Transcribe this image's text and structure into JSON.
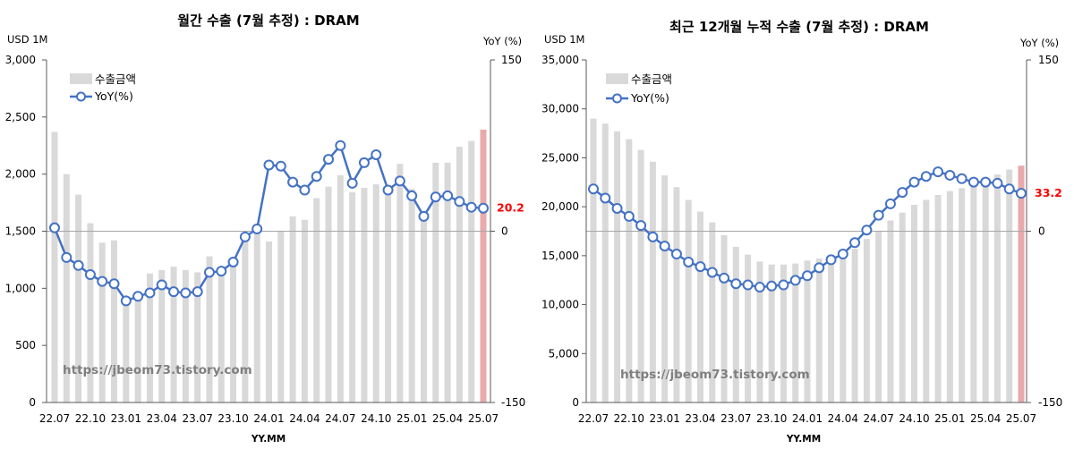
{
  "chart_data": [
    {
      "type": "bar",
      "title": "월간 수출 (7월 추정) : DRAM",
      "xlabel": "YY.MM",
      "ylabel": "USD 1M",
      "y2label": "YoY (%)",
      "ylim": [
        0,
        3000
      ],
      "y2lim": [
        -150,
        150
      ],
      "yticks": [
        0,
        500,
        1000,
        1500,
        2000,
        2500,
        3000
      ],
      "ytick_labels": [
        "0",
        "500",
        "1,000",
        "1,500",
        "2,000",
        "2,500",
        "3,000"
      ],
      "y2ticks": [
        -150,
        0,
        150
      ],
      "y2tick_labels": [
        "-150",
        "0",
        "150"
      ],
      "grid": false,
      "legend": "top-left",
      "axis_color": "#595959",
      "reference_line": {
        "y2": 0,
        "color": "#a6a6a6"
      },
      "categories": [
        "22.07",
        "",
        "",
        "22.10",
        "",
        "",
        "23.01",
        "",
        "",
        "23.04",
        "",
        "",
        "23.07",
        "",
        "",
        "23.10",
        "",
        "",
        "24.01",
        "",
        "",
        "24.04",
        "",
        "",
        "24.07",
        "",
        "",
        "24.10",
        "",
        "",
        "25.01",
        "",
        "",
        "25.04",
        "",
        "",
        "25.07"
      ],
      "series": [
        {
          "name": "수출금액",
          "type": "bar",
          "axis": "left",
          "color": "#d9d9d9",
          "last_color": "#e8aaaa",
          "values": [
            2370,
            2000,
            1820,
            1570,
            1400,
            1420,
            870,
            920,
            1130,
            1160,
            1190,
            1160,
            1140,
            1280,
            1180,
            1230,
            1470,
            1510,
            1410,
            1500,
            1630,
            1600,
            1790,
            1890,
            1990,
            1840,
            1880,
            1910,
            1830,
            2090,
            1870,
            1620,
            2100,
            2100,
            2240,
            2290,
            2390
          ]
        },
        {
          "name": "YoY(%)",
          "type": "line",
          "axis": "right",
          "color": "#4472c4",
          "values": [
            3,
            -23,
            -30,
            -38,
            -44,
            -46,
            -61,
            -57,
            -54,
            -47,
            -53,
            -54,
            -53,
            -36,
            -35,
            -27,
            -5,
            2,
            58,
            57,
            43,
            36,
            48,
            63,
            75,
            42,
            60,
            67,
            36,
            44,
            31,
            13,
            30,
            31,
            26,
            21,
            20.2
          ]
        }
      ],
      "last_value_label": {
        "text": "20.2",
        "color": "#ff0000"
      },
      "watermark": "https://jbeom73.tistory.com"
    },
    {
      "type": "bar",
      "title": "최근 12개월 누적 수출 (7월 추정) : DRAM",
      "xlabel": "YY.MM",
      "ylabel": "USD 1M",
      "y2label": "YoY (%)",
      "ylim": [
        0,
        35000
      ],
      "y2lim": [
        -150,
        150
      ],
      "yticks": [
        0,
        5000,
        10000,
        15000,
        20000,
        25000,
        30000,
        35000
      ],
      "ytick_labels": [
        "0",
        "5,000",
        "10,000",
        "15,000",
        "20,000",
        "25,000",
        "30,000",
        "35,000"
      ],
      "y2ticks": [
        -150,
        0,
        150
      ],
      "y2tick_labels": [
        "-150",
        "0",
        "150"
      ],
      "grid": false,
      "legend": "top-left",
      "axis_color": "#595959",
      "reference_line": {
        "y2": 0,
        "color": "#a6a6a6"
      },
      "categories": [
        "22.07",
        "",
        "",
        "22.10",
        "",
        "",
        "23.01",
        "",
        "",
        "23.04",
        "",
        "",
        "23.07",
        "",
        "",
        "23.10",
        "",
        "",
        "24.01",
        "",
        "",
        "24.04",
        "",
        "",
        "24.07",
        "",
        "",
        "24.10",
        "",
        "",
        "25.01",
        "",
        "",
        "25.04",
        "",
        "",
        "25.07"
      ],
      "series": [
        {
          "name": "수출금액",
          "type": "bar",
          "axis": "left",
          "color": "#d9d9d9",
          "last_color": "#e8aaaa",
          "values": [
            29000,
            28500,
            27700,
            26900,
            25800,
            24600,
            23200,
            22000,
            20700,
            19500,
            18400,
            17100,
            15900,
            15100,
            14400,
            14100,
            14100,
            14200,
            14500,
            14700,
            15100,
            15400,
            15700,
            16700,
            17500,
            18600,
            19400,
            20200,
            20700,
            21200,
            21600,
            21900,
            22300,
            22800,
            23300,
            23800,
            24200
          ]
        },
        {
          "name": "YoY(%)",
          "type": "line",
          "axis": "right",
          "color": "#4472c4",
          "values": [
            37,
            29,
            20,
            13,
            5,
            -5,
            -13,
            -20,
            -27,
            -31,
            -36,
            -41,
            -46,
            -47,
            -49,
            -48,
            -47,
            -43,
            -39,
            -32,
            -25,
            -20,
            -10,
            1,
            14,
            24,
            34,
            43,
            48,
            52,
            49,
            46,
            43,
            43,
            42,
            37,
            33.2
          ]
        }
      ],
      "last_value_label": {
        "text": "33.2",
        "color": "#ff0000"
      },
      "watermark": "https://jbeom73.tistory.com"
    }
  ]
}
